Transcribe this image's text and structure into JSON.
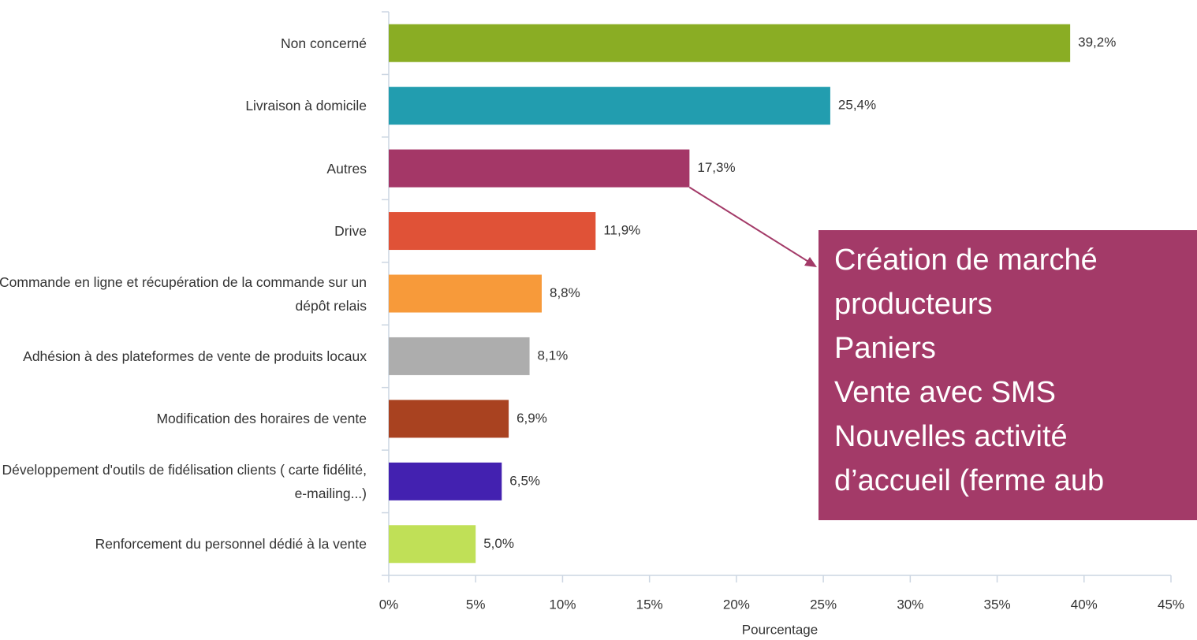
{
  "chart_data": {
    "type": "barh",
    "categories": [
      "Non concerné",
      "Livraison à domicile",
      "Autres",
      "Drive",
      "Commande en ligne et récupération de la commande sur un dépôt relais",
      "Adhésion à des plateformes de vente de produits locaux",
      "Modification des horaires de vente",
      "Développement d'outils de fidélisation clients ( carte fidélité, e-mailing...)",
      "Renforcement du personnel dédié à la vente"
    ],
    "values": [
      39.2,
      25.4,
      17.3,
      11.9,
      8.8,
      8.1,
      6.9,
      6.5,
      5.0
    ],
    "value_labels": [
      "39,2%",
      "25,4%",
      "17,3%",
      "11,9%",
      "8,8%",
      "8,1%",
      "6,9%",
      "6,5%",
      "5,0%"
    ],
    "colors": [
      "#8aad24",
      "#229daf",
      "#a43767",
      "#e05237",
      "#f79a3a",
      "#adadad",
      "#a94220",
      "#4321b0",
      "#c0e057"
    ],
    "xlim": [
      0,
      45
    ],
    "xticks": [
      {
        "value": 0,
        "label": "0%"
      },
      {
        "value": 5,
        "label": "5%"
      },
      {
        "value": 10,
        "label": "10%"
      },
      {
        "value": 15,
        "label": "15%"
      },
      {
        "value": 20,
        "label": "20%"
      },
      {
        "value": 25,
        "label": "25%"
      },
      {
        "value": 30,
        "label": "30%"
      },
      {
        "value": 35,
        "label": "35%"
      },
      {
        "value": 40,
        "label": "40%"
      },
      {
        "value": 45,
        "label": "45%"
      }
    ],
    "x_label": "Pourcentage",
    "grid": false,
    "annotation": [
      "Création de marché",
      "producteurs",
      "Paniers",
      "Vente avec SMS",
      "Nouvelles activité",
      "d’accueil (ferme aub"
    ]
  }
}
